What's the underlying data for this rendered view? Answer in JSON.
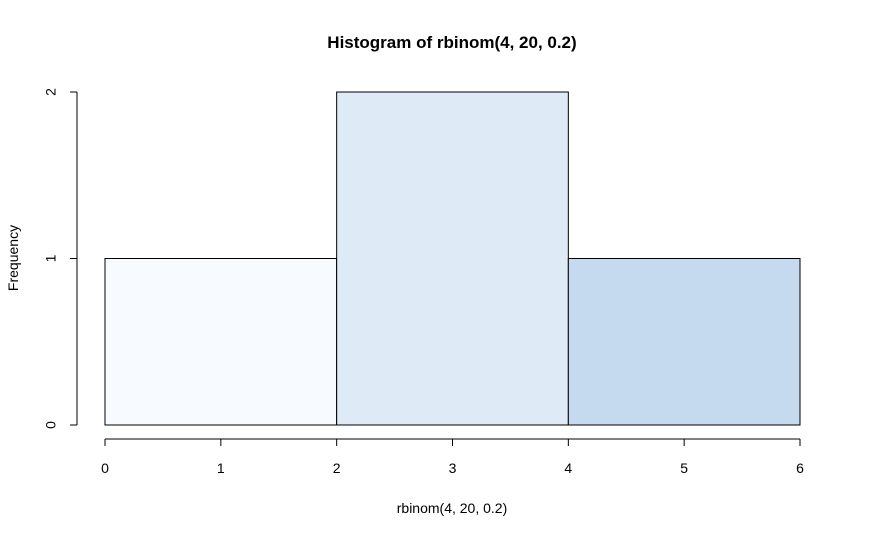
{
  "chart_data": {
    "type": "bar",
    "title": "Histogram of rbinom(4, 20, 0.2)",
    "xlabel": "rbinom(4, 20, 0.2)",
    "ylabel": "Frequency",
    "bins": [
      {
        "x0": 0,
        "x1": 2,
        "count": 1,
        "color": "#F7FAFF"
      },
      {
        "x0": 2,
        "x1": 4,
        "count": 2,
        "color": "#DEEAF6"
      },
      {
        "x0": 4,
        "x1": 6,
        "count": 1,
        "color": "#C6DAEF"
      }
    ],
    "xlim": [
      0,
      6
    ],
    "ylim": [
      0,
      2
    ],
    "xticks": [
      "0",
      "1",
      "2",
      "3",
      "4",
      "5",
      "6"
    ],
    "yticks": [
      "0",
      "1",
      "2"
    ],
    "grid": false,
    "legend": "none"
  }
}
